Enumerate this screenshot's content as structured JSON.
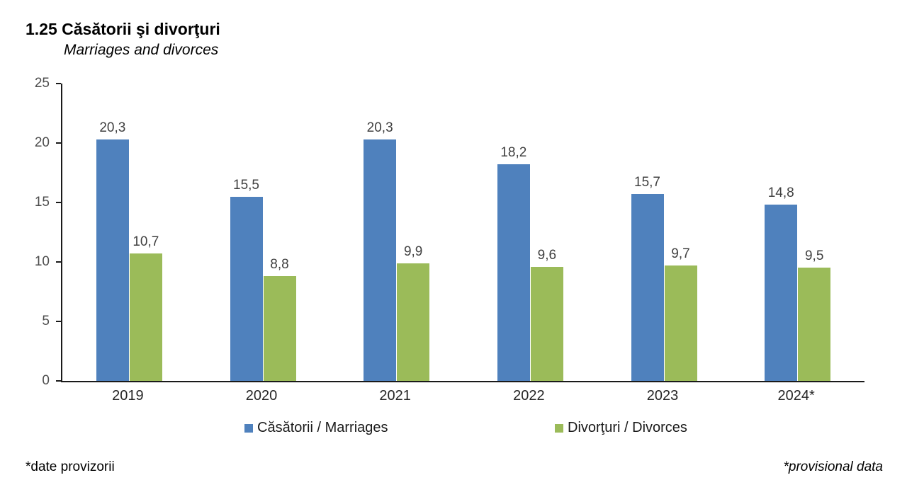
{
  "header": {
    "title": "1.25 Căsătorii şi divorţuri",
    "subtitle": "Marriages and divorces"
  },
  "chart_data": {
    "type": "bar",
    "title": "1.25 Căsătorii şi divorţuri",
    "subtitle": "Marriages and divorces",
    "categories": [
      "2019",
      "2020",
      "2021",
      "2022",
      "2023",
      "2024*"
    ],
    "series": [
      {
        "name": "Căsătorii / Marriages",
        "color": "#4F81BD",
        "values": [
          20.3,
          15.5,
          20.3,
          18.2,
          15.7,
          14.8
        ],
        "labels": [
          "20,3",
          "15,5",
          "20,3",
          "18,2",
          "15,7",
          "14,8"
        ]
      },
      {
        "name": "Divorţuri / Divorces",
        "color": "#9BBB59",
        "values": [
          10.7,
          8.8,
          9.9,
          9.6,
          9.7,
          9.5
        ],
        "labels": [
          "10,7",
          "8,8",
          "9,9",
          "9,6",
          "9,7",
          "9,5"
        ]
      }
    ],
    "ylim": [
      0,
      25
    ],
    "yticks": [
      0,
      5,
      10,
      15,
      20,
      25
    ],
    "grid": false,
    "legend_position": "bottom",
    "axis_color": "#1a1a1a"
  },
  "legend": {
    "items": [
      {
        "label": "Căsătorii / Marriages",
        "color": "#4F81BD"
      },
      {
        "label": "Divorţuri / Divorces",
        "color": "#9BBB59"
      }
    ]
  },
  "footer": {
    "left": "*date provizorii",
    "right": "*provisional data"
  }
}
